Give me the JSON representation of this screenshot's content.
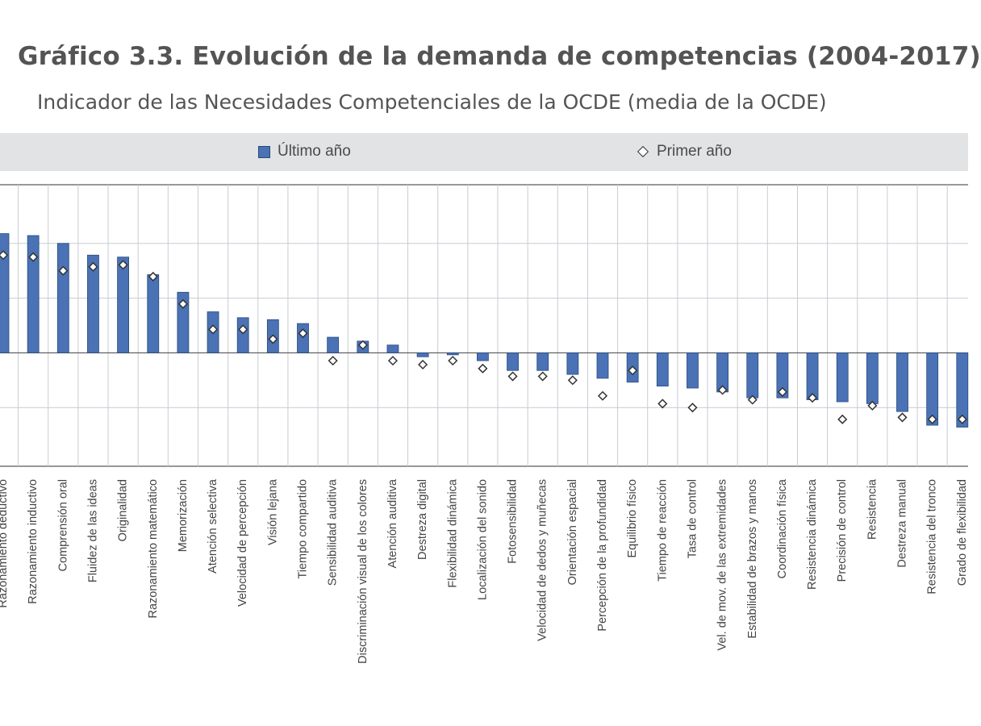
{
  "title": "Gráfico 3.3. Evolución de la demanda de competencias (2004-2017)",
  "subtitle": "Indicador de las Necesidades Competenciales de la OCDE (media de la OCDE)",
  "legend": {
    "bar_label": "Último año",
    "marker_label": "Primer año"
  },
  "colors": {
    "bar_fill": "#4a72b5",
    "bar_stroke": "#2a4a7e",
    "marker_fill": "#ffffff",
    "marker_stroke": "#333333",
    "grid": "#c9ccd2",
    "legend_bg": "#e2e3e5"
  },
  "chart_data": {
    "type": "bar",
    "title": "Gráfico 3.3. Evolución de la demanda de competencias (2004-2017)",
    "subtitle": "Indicador de las Necesidades Competenciales de la OCDE (media de la OCDE)",
    "ylim": [
      -0.58,
      0.86
    ],
    "grid": true,
    "legend_position": "top",
    "categories": [
      "Razonamiento deductivo",
      "Razonamiento inductivo",
      "Comprensión oral",
      "Fluidez de las ideas",
      "Originalidad",
      "Razonamiento matemático",
      "Memorización",
      "Atención selectiva",
      "Velocidad de percepción",
      "Visión lejana",
      "Tiempo compartido",
      "Sensibilidad auditiva",
      "Discriminación visual de los colores",
      "Atención auditiva",
      "Destreza digital",
      "Flexibilidad dinámica",
      "Localización del sonido",
      "Fotosensibilidad",
      "Velocidad de dedos y muñecas",
      "Orientación espacial",
      "Percepción de la profundidad",
      "Equilibrio físico",
      "Tiempo de reacción",
      "Tasa de control",
      "Vel. de mov. de las extremidades",
      "Estabilidad de brazos y manos",
      "Coordinación física",
      "Resistencia dinámica",
      "Precisión de control",
      "Resistencia",
      "Destreza manual",
      "Resistencia del tronco",
      "Grado de flexibilidad"
    ],
    "series": [
      {
        "name": "Último año",
        "kind": "bar",
        "values": [
          0.61,
          0.6,
          0.56,
          0.5,
          0.49,
          0.4,
          0.31,
          0.21,
          0.18,
          0.17,
          0.15,
          0.08,
          0.06,
          0.04,
          -0.02,
          -0.01,
          -0.04,
          -0.09,
          -0.09,
          -0.11,
          -0.13,
          -0.15,
          -0.17,
          -0.18,
          -0.2,
          -0.23,
          -0.23,
          -0.24,
          -0.25,
          -0.26,
          -0.3,
          -0.37,
          -0.38
        ]
      },
      {
        "name": "Primer año",
        "kind": "marker",
        "values": [
          0.5,
          0.49,
          0.42,
          0.44,
          0.45,
          0.39,
          0.25,
          0.12,
          0.12,
          0.07,
          0.1,
          -0.04,
          0.04,
          -0.04,
          -0.06,
          -0.04,
          -0.08,
          -0.12,
          -0.12,
          -0.14,
          -0.22,
          -0.09,
          -0.26,
          -0.28,
          -0.19,
          -0.24,
          -0.2,
          -0.23,
          -0.34,
          -0.27,
          -0.33,
          -0.34,
          -0.34
        ]
      }
    ]
  }
}
